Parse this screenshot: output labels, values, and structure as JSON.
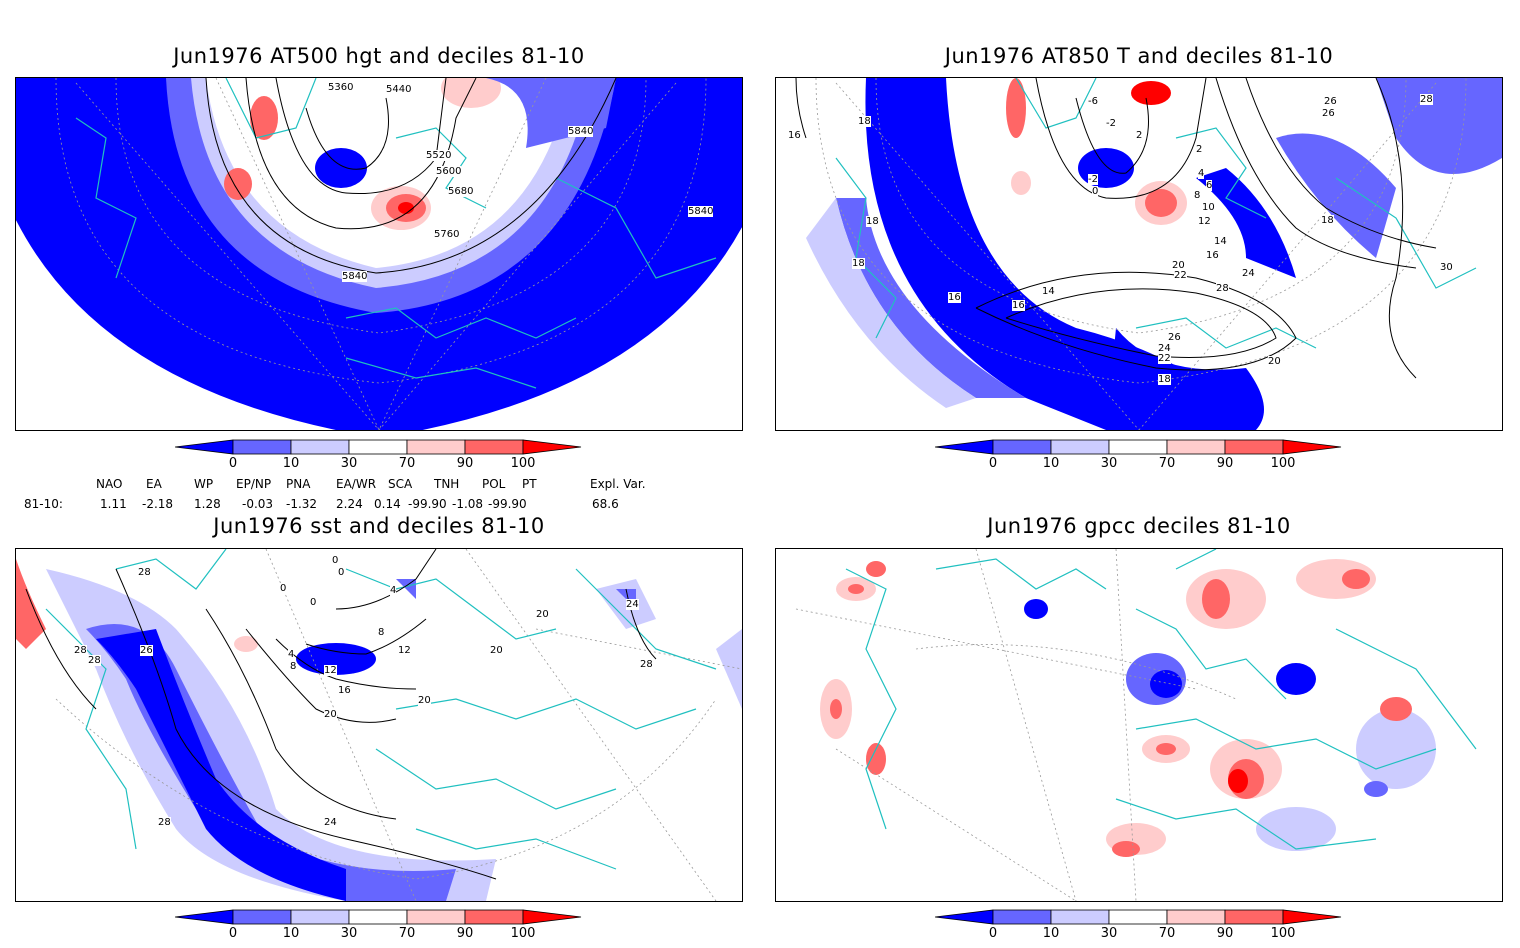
{
  "panels": [
    {
      "id": "p1",
      "title": "Jun1976 AT500 hgt and deciles 81-10",
      "contour_labels": [
        "5360",
        "5440",
        "5520",
        "5600",
        "5680",
        "5760",
        "5840",
        "5840",
        "5840"
      ]
    },
    {
      "id": "p2",
      "title": "Jun1976 AT850 T and deciles 81-10",
      "contour_labels": [
        "-6",
        "-2",
        "2",
        "-2",
        "0",
        "2",
        "4",
        "6",
        "8",
        "10",
        "12",
        "14",
        "16",
        "18",
        "18",
        "18",
        "16",
        "16",
        "14",
        "16",
        "20",
        "22",
        "24",
        "26",
        "28",
        "24",
        "22",
        "26",
        "20",
        "18",
        "26",
        "28",
        "18",
        "30",
        "16"
      ]
    },
    {
      "id": "p3",
      "title": "Jun1976 sst and deciles 81-10",
      "contour_labels": [
        "28",
        "28",
        "28",
        "26",
        "0",
        "0",
        "0",
        "0",
        "4",
        "8",
        "12",
        "16",
        "20",
        "20",
        "20",
        "24",
        "24",
        "28",
        "28",
        "20",
        "12",
        "8",
        "4"
      ]
    },
    {
      "id": "p4",
      "title": "Jun1976 gpcc deciles 81-10",
      "contour_labels": []
    }
  ],
  "colorbar": {
    "ticks": [
      "0",
      "10",
      "30",
      "70",
      "90",
      "100"
    ],
    "colors": [
      "#0000ff",
      "#6666ff",
      "#ccccff",
      "#ffffff",
      "#ffcccc",
      "#ff6666",
      "#ff0000"
    ]
  },
  "indices": {
    "headers": [
      "NAO",
      "EA",
      "WP",
      "EP/NP",
      "PNA",
      "EA/WR",
      "SCA",
      "TNH",
      "POL",
      "PT",
      "Expl. Var."
    ],
    "row_label": "81-10:",
    "values": [
      "1.11",
      "-2.18",
      "1.28",
      "-0.03",
      "-1.32",
      "2.24",
      "0.14",
      "-99.90",
      "-1.08",
      "-99.90",
      "68.6"
    ]
  },
  "colors": {
    "coast": "#20c0c0",
    "contour": "#000000",
    "grid": "#999999"
  }
}
